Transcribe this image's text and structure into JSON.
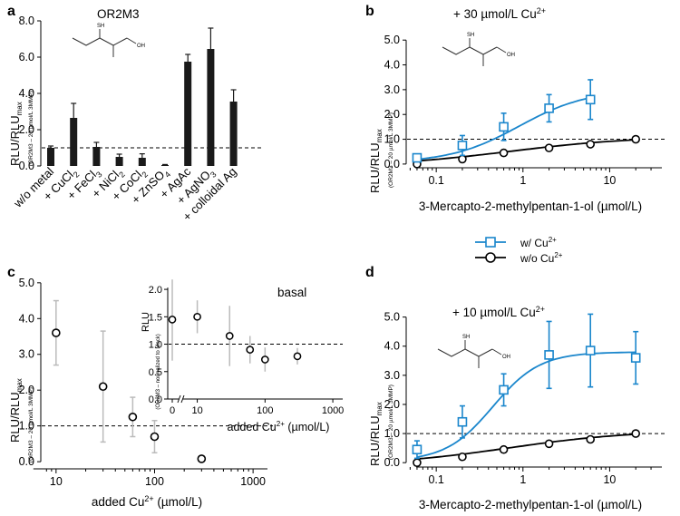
{
  "panels": {
    "a": {
      "letter": "a",
      "title": "OR2M3",
      "ylabel": "RLU/RLU",
      "ylabel_sub": "max",
      "ylabel_note": "(OR2M3 – 20 µmol/L 3MMP)"
    },
    "b": {
      "letter": "b",
      "title": "+ 30 µmol/L Cu",
      "title_sup": "2+",
      "ylabel": "RLU/RLU",
      "ylabel_sub": "max",
      "ylabel_note": "(OR2M3 – 20 µmol/L 3MMP)",
      "xlabel": "3-Mercapto-2-methylpentan-1-ol (µmol/L)"
    },
    "c": {
      "letter": "c",
      "ylabel": "RLU/RLU",
      "ylabel_sub": "max",
      "ylabel_note": "(OR2M3 – 20 µmol/L 3MMP)",
      "xlabel": "added Cu",
      "xlabel_sup": "2+",
      "xlabel_tail": " (µmol/L)",
      "inset_title": "basal",
      "inset_ylabel": "RLU",
      "inset_ylabel_note": "(OR2M3 – normalized to Mock)",
      "inset_xlabel": "added Cu",
      "inset_xlabel_sup": "2+",
      "inset_xlabel_tail": " (µmol/L)"
    },
    "d": {
      "letter": "d",
      "title": "+ 10 µmol/L Cu",
      "title_sup": "2+",
      "ylabel": "RLU/RLU",
      "ylabel_sub": "max",
      "ylabel_note": "(OR2M3 – 20 µmol/L 3MMP)",
      "xlabel": "3-Mercapto-2-methylpentan-1-ol (µmol/L)"
    }
  },
  "legend": {
    "with_label": "w/   Cu",
    "with_sup": "2+",
    "without_label": "w/o Cu",
    "without_sup": "2+"
  },
  "molecule": {
    "sh_label": "SH",
    "oh_label": "OH"
  },
  "colors": {
    "blue": "#1a86cc",
    "black": "#000000",
    "grey_err": "#bbbbbb",
    "bar": "#1a1a1a",
    "sh": "#e02020",
    "oh": "#2e9e2e"
  },
  "chart_data": [
    {
      "panel": "a",
      "type": "bar",
      "title": "OR2M3",
      "ylabel": "RLU/RLUmax (OR2M3 – 20 µmol/L 3MMP)",
      "ylim": [
        0,
        8
      ],
      "yticks": [
        "0.0",
        "2.0",
        "4.0",
        "6.0",
        "8.0"
      ],
      "reference_line": 1.0,
      "categories": [
        {
          "text": "w/o metal"
        },
        {
          "text": "+ CuCl",
          "sub": "2"
        },
        {
          "text": "+ FeCl",
          "sub": "3"
        },
        {
          "text": "+ NiCl",
          "sub": "2"
        },
        {
          "text": "+ CoCl",
          "sub": "2"
        },
        {
          "text": "+ ZnSO",
          "sub": "4"
        },
        {
          "text": "+ AgAc"
        },
        {
          "text": "+ AgNO",
          "sub": "3"
        },
        {
          "text": "+ colloidal Ag"
        }
      ],
      "values": [
        1.0,
        2.65,
        1.05,
        0.5,
        0.45,
        0.05,
        5.75,
        6.45,
        3.55
      ],
      "errors": [
        0.1,
        0.8,
        0.25,
        0.15,
        0.22,
        0.03,
        0.4,
        1.15,
        0.65
      ]
    },
    {
      "panel": "b",
      "type": "line",
      "xscale": "log",
      "title": "+ 30 µmol/L Cu2+",
      "xlabel": "3-Mercapto-2-methylpentan-1-ol (µmol/L)",
      "ylabel": "RLU/RLUmax (OR2M3 – 20 µmol/L 3MMP)",
      "xlim": [
        0.045,
        40
      ],
      "ylim": [
        -0.15,
        5.3
      ],
      "xticks": [
        {
          "v": 0.1,
          "label": "0.1"
        },
        {
          "v": 1,
          "label": "1"
        },
        {
          "v": 10,
          "label": "10"
        }
      ],
      "yticks": [
        "0.0",
        "1.0",
        "2.0",
        "3.0",
        "4.0",
        "5.0"
      ],
      "reference_line": 1.0,
      "series": [
        {
          "name": "w/ Cu2+",
          "marker": "square",
          "x": [
            0.06,
            0.2,
            0.6,
            2,
            6
          ],
          "values": [
            0.25,
            0.75,
            1.5,
            2.25,
            2.6
          ],
          "errors": [
            0.15,
            0.4,
            0.55,
            0.55,
            0.8
          ],
          "fit": {
            "bottom": 0.05,
            "top": 3.0,
            "ec50": 0.9,
            "hill": 1.1,
            "xmin": 0.06,
            "xmax": 6
          }
        },
        {
          "name": "w/o Cu2+",
          "marker": "circle",
          "x": [
            0.06,
            0.2,
            0.6,
            2,
            6,
            20
          ],
          "values": [
            0.0,
            0.2,
            0.45,
            0.65,
            0.8,
            1.0
          ],
          "errors": [
            0,
            0,
            0,
            0,
            0,
            0
          ],
          "fit": {
            "bottom": -0.1,
            "top": 1.12,
            "ec50": 0.7,
            "hill": 0.6,
            "xmin": 0.06,
            "xmax": 20
          }
        }
      ]
    },
    {
      "panel": "c",
      "type": "scatter",
      "xscale": "log",
      "xlabel": "added Cu2+ (µmol/L)",
      "ylabel": "RLU/RLUmax (OR2M3 – 20 µmol/L 3MMP)",
      "xlim": [
        7,
        1400
      ],
      "ylim": [
        -0.2,
        5.3
      ],
      "xticks": [
        {
          "v": 10,
          "label": "10"
        },
        {
          "v": 100,
          "label": "100"
        },
        {
          "v": 1000,
          "label": "1000"
        }
      ],
      "yticks": [
        "0.0",
        "1.0",
        "2.0",
        "3.0",
        "4.0",
        "5.0"
      ],
      "reference_line": 1.0,
      "series": [
        {
          "name": "main",
          "x": [
            10,
            30,
            60,
            100,
            300
          ],
          "values": [
            3.6,
            2.1,
            1.25,
            0.7,
            0.08
          ],
          "errors": [
            0.9,
            1.55,
            0.55,
            0.45,
            0.08
          ]
        }
      ],
      "inset": {
        "title": "basal",
        "type": "scatter",
        "xlabel": "added Cu2+ (µmol/L)",
        "ylabel": "RLU (OR2M3 – normalized to Mock)",
        "ylim": [
          0.0,
          2.2
        ],
        "xticks": [
          "0",
          "10",
          "100",
          "1000"
        ],
        "yticks": [
          "0.0",
          "0.5",
          "1.0",
          "1.5",
          "2.0"
        ],
        "reference_line": 1.0,
        "x": [
          0,
          10,
          30,
          60,
          100,
          300
        ],
        "values": [
          1.45,
          1.5,
          1.15,
          0.9,
          0.72,
          0.78
        ],
        "errors": [
          0.75,
          0.3,
          0.55,
          0.25,
          0.22,
          0.15
        ]
      }
    },
    {
      "panel": "d",
      "type": "line",
      "xscale": "log",
      "title": "+ 10 µmol/L Cu2+",
      "xlabel": "3-Mercapto-2-methylpentan-1-ol (µmol/L)",
      "ylabel": "RLU/RLUmax (OR2M3 – 20 µmol/L 3MMP)",
      "xlim": [
        0.045,
        40
      ],
      "ylim": [
        -0.15,
        5.3
      ],
      "xticks": [
        {
          "v": 0.1,
          "label": "0.1"
        },
        {
          "v": 1,
          "label": "1"
        },
        {
          "v": 10,
          "label": "10"
        }
      ],
      "yticks": [
        "0.0",
        "1.0",
        "2.0",
        "3.0",
        "4.0",
        "5.0"
      ],
      "reference_line": 1.0,
      "series": [
        {
          "name": "w/ Cu2+",
          "marker": "square",
          "x": [
            0.06,
            0.2,
            0.6,
            2,
            6,
            20
          ],
          "values": [
            0.45,
            1.4,
            2.5,
            3.7,
            3.85,
            3.6
          ],
          "errors": [
            0.3,
            0.55,
            0.55,
            1.15,
            1.25,
            0.9
          ],
          "fit": {
            "bottom": 0.05,
            "top": 3.8,
            "ec50": 0.45,
            "hill": 1.6,
            "xmin": 0.06,
            "xmax": 20
          }
        },
        {
          "name": "w/o Cu2+",
          "marker": "circle",
          "x": [
            0.06,
            0.2,
            0.6,
            2,
            6,
            20
          ],
          "values": [
            0.0,
            0.2,
            0.45,
            0.65,
            0.8,
            1.0
          ],
          "errors": [
            0,
            0,
            0,
            0,
            0,
            0
          ],
          "fit": {
            "bottom": -0.1,
            "top": 1.12,
            "ec50": 0.7,
            "hill": 0.6,
            "xmin": 0.06,
            "xmax": 20
          }
        }
      ]
    }
  ]
}
